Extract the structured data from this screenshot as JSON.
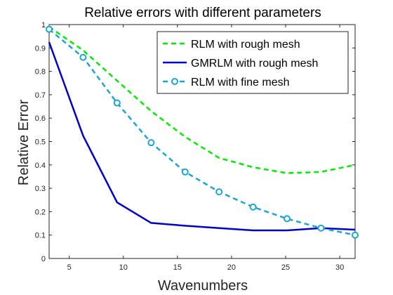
{
  "chart_data": {
    "type": "line",
    "title": "Relative errors with different parameters",
    "xlabel": "Wavenumbers",
    "ylabel": "Relative Error",
    "xlim": [
      3.14,
      31.42
    ],
    "ylim": [
      0,
      1
    ],
    "xticks": [
      5,
      10,
      15,
      20,
      25,
      30
    ],
    "yticks": [
      0,
      0.1,
      0.2,
      0.3,
      0.4,
      0.5,
      0.6,
      0.7,
      0.8,
      0.9,
      1
    ],
    "grid": false,
    "legend_position": "top-right",
    "series": [
      {
        "name": "RLM with rough mesh",
        "color": "#00ee00",
        "style": "dashed",
        "marker": "none",
        "x": [
          3.14,
          6.28,
          9.42,
          12.57,
          15.71,
          18.85,
          21.99,
          25.13,
          28.27,
          31.42
        ],
        "y": [
          0.99,
          0.89,
          0.76,
          0.63,
          0.52,
          0.43,
          0.39,
          0.365,
          0.37,
          0.4
        ]
      },
      {
        "name": "GMRLM with rough mesh",
        "color": "#0000cc",
        "style": "solid",
        "marker": "none",
        "x": [
          3.14,
          6.28,
          9.42,
          12.57,
          15.71,
          18.85,
          21.99,
          25.13,
          28.27,
          31.42
        ],
        "y": [
          0.925,
          0.525,
          0.24,
          0.152,
          0.14,
          0.13,
          0.12,
          0.12,
          0.13,
          0.123
        ]
      },
      {
        "name": "RLM with fine mesh",
        "color": "#1aa6d4",
        "style": "dashed",
        "marker": "circle",
        "x": [
          3.14,
          6.28,
          9.42,
          12.57,
          15.71,
          18.85,
          21.99,
          25.13,
          28.27,
          31.42
        ],
        "y": [
          0.98,
          0.86,
          0.665,
          0.495,
          0.37,
          0.285,
          0.22,
          0.17,
          0.13,
          0.1
        ]
      }
    ]
  }
}
